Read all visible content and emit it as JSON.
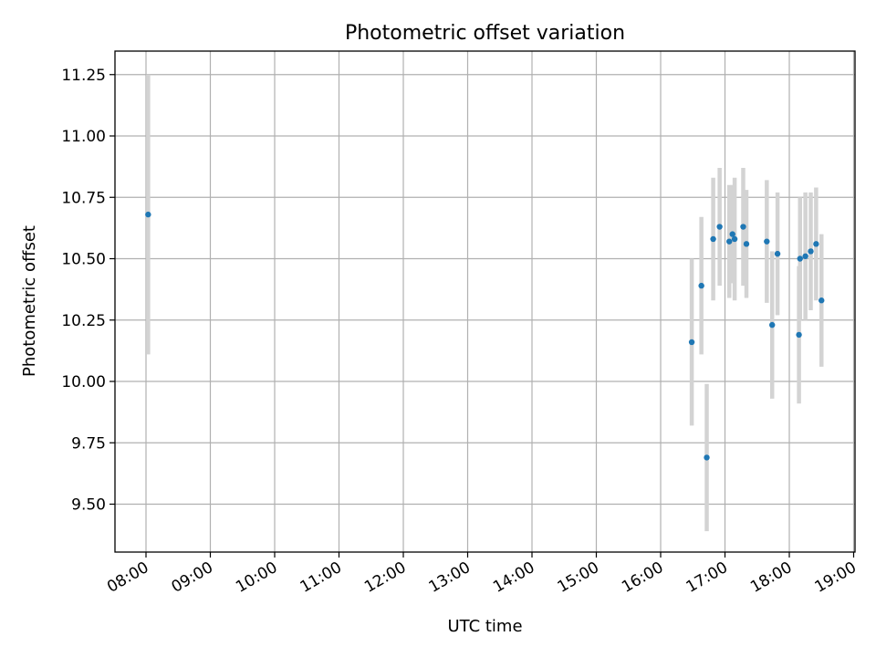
{
  "chart_data": {
    "type": "scatter",
    "title": "Photometric offset variation",
    "xlabel": "UTC time",
    "ylabel": "Photometric offset",
    "x_unit": "UTC",
    "xlim": [
      "07:30",
      "18:30"
    ],
    "ylim": [
      9.3,
      11.35
    ],
    "x_ticks": [
      "08:00",
      "09:00",
      "10:00",
      "11:00",
      "12:00",
      "13:00",
      "14:00",
      "15:00",
      "16:00",
      "17:00",
      "18:00",
      "19:00"
    ],
    "y_ticks": [
      "9.50",
      "9.75",
      "10.00",
      "10.25",
      "10.50",
      "10.75",
      "11.00",
      "11.25"
    ],
    "grid": true,
    "colors": {
      "points": "#1f77b4",
      "errorbars": "#d3d3d3"
    },
    "series": [
      {
        "points": [
          {
            "x": "08:02",
            "y": 10.68,
            "err": 0.57
          },
          {
            "x": "16:29",
            "y": 10.16,
            "err": 0.34
          },
          {
            "x": "16:38",
            "y": 10.39,
            "err": 0.28
          },
          {
            "x": "16:43",
            "y": 9.69,
            "err": 0.3
          },
          {
            "x": "16:49",
            "y": 10.58,
            "err": 0.25
          },
          {
            "x": "16:55",
            "y": 10.63,
            "err": 0.24
          },
          {
            "x": "17:04",
            "y": 10.57,
            "err": 0.23
          },
          {
            "x": "17:07",
            "y": 10.6,
            "err": 0.2
          },
          {
            "x": "17:09",
            "y": 10.58,
            "err": 0.25
          },
          {
            "x": "17:17",
            "y": 10.63,
            "err": 0.24
          },
          {
            "x": "17:20",
            "y": 10.56,
            "err": 0.22
          },
          {
            "x": "17:39",
            "y": 10.57,
            "err": 0.25
          },
          {
            "x": "17:44",
            "y": 10.23,
            "err": 0.3
          },
          {
            "x": "17:49",
            "y": 10.52,
            "err": 0.25
          },
          {
            "x": "18:09",
            "y": 10.19,
            "err": 0.28
          },
          {
            "x": "18:10",
            "y": 10.5,
            "err": 0.25
          },
          {
            "x": "18:15",
            "y": 10.51,
            "err": 0.26
          },
          {
            "x": "18:20",
            "y": 10.53,
            "err": 0.24
          },
          {
            "x": "18:25",
            "y": 10.56,
            "err": 0.23
          },
          {
            "x": "18:30",
            "y": 10.33,
            "err": 0.27
          }
        ]
      }
    ]
  }
}
